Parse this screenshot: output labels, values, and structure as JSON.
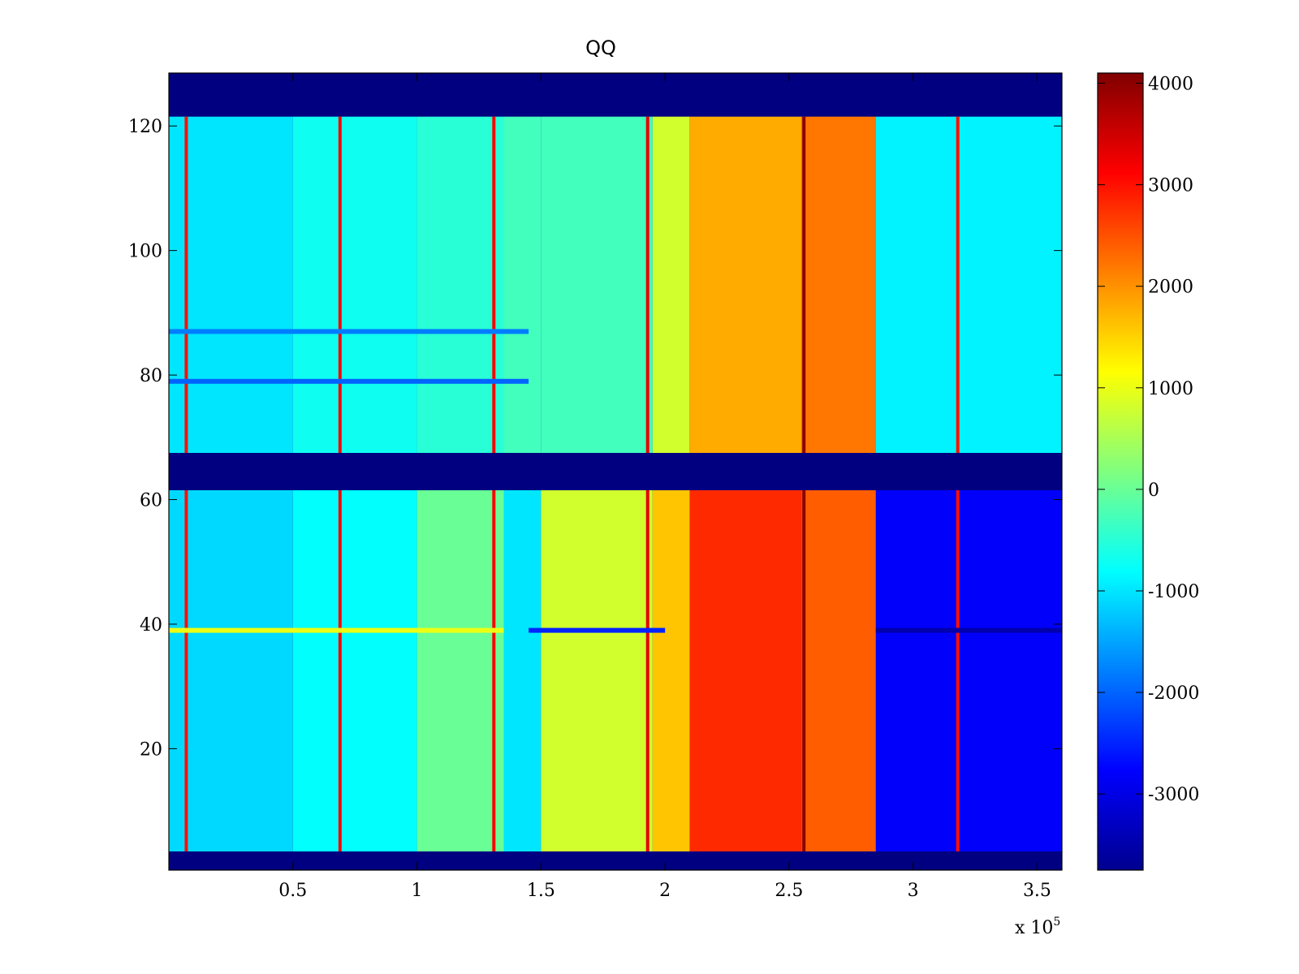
{
  "chart_data": {
    "type": "heatmap",
    "title": "QQ",
    "xlabel": "",
    "ylabel": "",
    "x_multiplier_label": {
      "base": "x 10",
      "exponent": "5"
    },
    "xlim": [
      0,
      3.6
    ],
    "ylim": [
      0.5,
      128.5
    ],
    "x_ticks": [
      0.5,
      1,
      1.5,
      2,
      2.5,
      3,
      3.5
    ],
    "x_tick_labels": [
      "0.5",
      "1",
      "1.5",
      "2",
      "2.5",
      "3",
      "3.5"
    ],
    "y_ticks": [
      20,
      40,
      60,
      80,
      100,
      120
    ],
    "y_tick_labels": [
      "20",
      "40",
      "60",
      "80",
      "100",
      "120"
    ],
    "colormap": "jet",
    "clim": [
      -3750,
      4100
    ],
    "colorbar": {
      "location": "right",
      "ticks": [
        4000,
        3000,
        2000,
        1000,
        0,
        -1000,
        -2000,
        -3000
      ],
      "tick_labels": [
        "4000",
        "3000",
        "2000",
        "1000",
        "0",
        "-1000",
        "-2000",
        "-3000"
      ]
    },
    "grid": false,
    "rows_masked_min_value": [
      [
        0.5,
        3.5
      ],
      [
        61.5,
        67.5
      ],
      [
        121.5,
        128.5
      ]
    ],
    "x_bands": [
      {
        "x_range": [
          0.0,
          0.5
        ],
        "lower_block": -1100,
        "upper_block": -1000
      },
      {
        "x_range": [
          0.5,
          1.0
        ],
        "lower_block": -800,
        "upper_block": -700
      },
      {
        "x_range": [
          1.0,
          1.35
        ],
        "lower_block": 0,
        "upper_block": -500
      },
      {
        "x_range": [
          1.35,
          1.5
        ],
        "lower_block": -1000,
        "upper_block": -300
      },
      {
        "x_range": [
          1.5,
          1.95
        ],
        "lower_block": 800,
        "upper_block": -300
      },
      {
        "x_range": [
          1.95,
          2.1
        ],
        "lower_block": 1600,
        "upper_block": 800
      },
      {
        "x_range": [
          2.1,
          2.55
        ],
        "lower_block": 2800,
        "upper_block": 1800
      },
      {
        "x_range": [
          2.55,
          2.85
        ],
        "lower_block": 2400,
        "upper_block": 2200
      },
      {
        "x_range": [
          2.85,
          3.6
        ],
        "lower_block": -2800,
        "upper_block": -900
      }
    ],
    "vertical_stripes": [
      {
        "x": 0.07,
        "value": 3000
      },
      {
        "x": 0.69,
        "value": 3100
      },
      {
        "x": 1.31,
        "value": 3100
      },
      {
        "x": 1.93,
        "value": 3300
      },
      {
        "x": 2.56,
        "value": 4000
      },
      {
        "x": 3.18,
        "value": 3000
      }
    ],
    "horizontal_stripes": [
      {
        "y": 39,
        "value": 1000,
        "x_range": [
          0.0,
          1.35
        ]
      },
      {
        "y": 39,
        "value": -2500,
        "x_range": [
          1.45,
          2.0
        ]
      },
      {
        "y": 39,
        "value": -3400,
        "x_range": [
          2.85,
          3.6
        ]
      },
      {
        "y": 79,
        "value": -2000,
        "x_range": [
          0.0,
          1.45
        ]
      },
      {
        "y": 87,
        "value": -1800,
        "x_range": [
          0.0,
          1.45
        ]
      }
    ]
  },
  "colors": {
    "axis": "#000000",
    "background": "#ffffff",
    "masked": "#000080"
  }
}
